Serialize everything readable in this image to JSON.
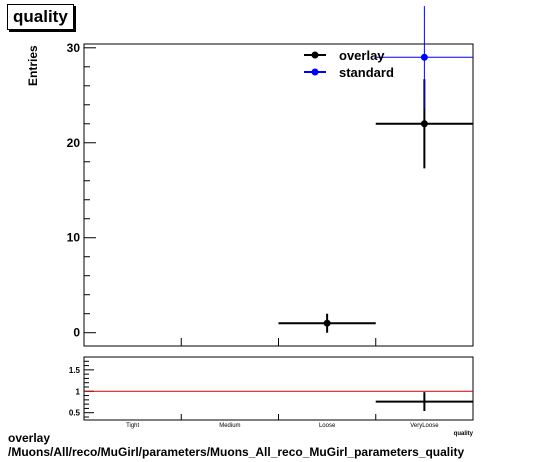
{
  "title": "quality",
  "footer": {
    "line1": "overlay",
    "line2": "/Muons/All/reco/MuGirl/parameters/Muons_All_reco_MuGirl_parameters_quality"
  },
  "chart_data": [
    {
      "type": "scatter",
      "ylabel": "Entries",
      "xlabel": "quality",
      "categories": [
        "Tight",
        "Medium",
        "Loose",
        "VeryLoose"
      ],
      "ylim": [
        -1.4,
        30.4
      ],
      "yticks": [
        0,
        10,
        20,
        30
      ],
      "legend_position": "top-right",
      "series": [
        {
          "name": "overlay",
          "color": "#000000",
          "values": [
            null,
            null,
            1,
            22
          ],
          "errors": [
            null,
            null,
            1,
            4.69
          ]
        },
        {
          "name": "standard",
          "color": "#0000ff",
          "values": [
            null,
            null,
            null,
            29
          ],
          "errors": [
            null,
            null,
            null,
            5.39
          ]
        }
      ]
    },
    {
      "type": "scatter",
      "categories": [
        "Tight",
        "Medium",
        "Loose",
        "VeryLoose"
      ],
      "ylim": [
        0.33,
        1.8
      ],
      "yticks": [
        0.5,
        1,
        1.5
      ],
      "ytick_labels": [
        "0.5",
        "1",
        "1.5"
      ],
      "reference_line": 1,
      "reference_color": "#cc0000",
      "values": [
        null,
        null,
        null,
        0.76
      ],
      "errors": [
        null,
        null,
        null,
        0.22
      ]
    }
  ]
}
